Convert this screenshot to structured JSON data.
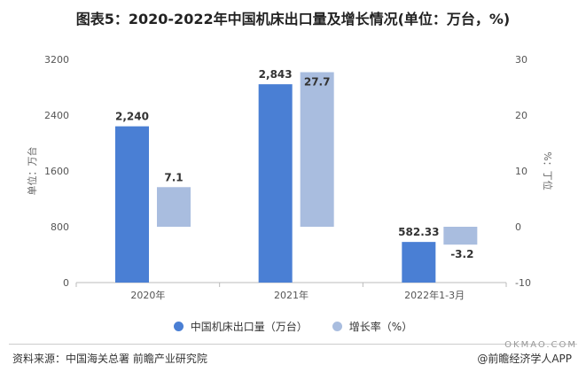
{
  "title": "图表5：2020-2022年中国机床出口量及增长情况(单位：万台，%)",
  "chart_data": {
    "type": "bar",
    "categories": [
      "2020年",
      "2021年",
      "2022年1-3月"
    ],
    "series": [
      {
        "name": "中国机床出口量（万台）",
        "axis": "left",
        "color": "#4a7fd4",
        "values": [
          2240,
          2843,
          582.33
        ],
        "labels": [
          "2,240",
          "2,843",
          "582.33"
        ]
      },
      {
        "name": "增长率（%）",
        "axis": "right",
        "color": "#a9bddf",
        "values": [
          7.1,
          27.7,
          -3.2
        ],
        "labels": [
          "7.1",
          "27.7",
          "-3.2"
        ]
      }
    ],
    "y_left": {
      "label": "单位：万台",
      "ylim": [
        0,
        3200
      ],
      "ticks": [
        "0",
        "800",
        "1600",
        "2400",
        "3200"
      ]
    },
    "y_right": {
      "label": "%：丁位",
      "ylim": [
        -10,
        30
      ],
      "ticks": [
        "-10",
        "0",
        "10",
        "20",
        "30"
      ]
    },
    "legend_position": "bottom",
    "grid": false
  },
  "source": "资料来源：中国海关总署 前瞻产业研究院",
  "credit": "@前瞻经济学人APP",
  "watermark_site": "OKMAO.COM"
}
